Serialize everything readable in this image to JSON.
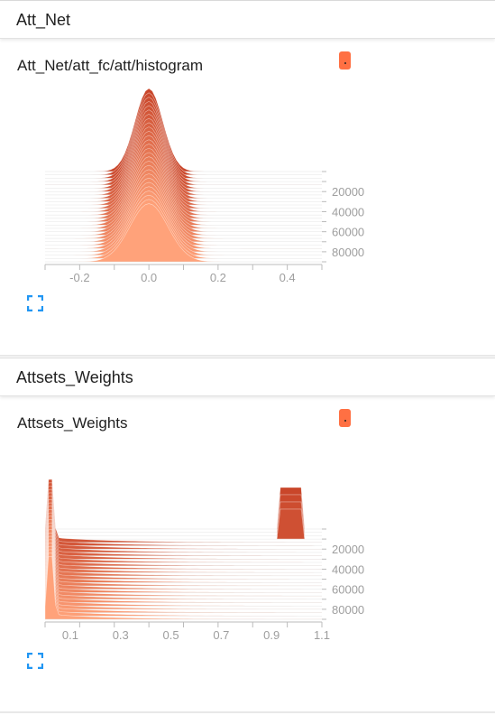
{
  "colors": {
    "accent": "#ff7043",
    "dark": "#c9462a",
    "light": "#ffa27a",
    "icon": "#2196f3"
  },
  "sections": [
    {
      "title": "Att_Net"
    },
    {
      "title": "Attsets_Weights"
    }
  ],
  "charts": [
    {
      "title": "Att_Net/att_fc/att/histogram",
      "badge_icon": "color-swatch-icon",
      "expand_icon": "fullscreen-icon"
    },
    {
      "title": "Attsets_Weights",
      "badge_icon": "color-swatch-icon",
      "expand_icon": "fullscreen-icon"
    }
  ],
  "chart_data": [
    {
      "type": "area",
      "title": "Att_Net/att_fc/att/histogram",
      "xlim": [
        -0.3,
        0.5
      ],
      "x_ticks": [
        -0.2,
        0.0,
        0.2,
        0.4
      ],
      "x_tick_labels": [
        "-0.2",
        "0.0",
        "0.2",
        "0.4"
      ],
      "step_ticks": [
        20000,
        40000,
        60000,
        80000
      ],
      "step_tick_labels": [
        "20000",
        "40000",
        "60000",
        "80000"
      ],
      "step_range": [
        0,
        90000
      ],
      "num_slices": 28,
      "distribution": {
        "center": 0.0,
        "stddev_first": 0.04,
        "stddev_last": 0.055,
        "height_first": 1.0,
        "height_last": 0.7
      }
    },
    {
      "type": "area",
      "title": "Attsets_Weights",
      "xlim": [
        0.0,
        1.1
      ],
      "x_ticks": [
        0.1,
        0.3,
        0.5,
        0.7,
        0.9,
        1.1
      ],
      "x_tick_labels": [
        "0.1",
        "0.3",
        "0.5",
        "0.7",
        "0.9",
        "1.1"
      ],
      "step_ticks": [
        20000,
        40000,
        60000,
        80000
      ],
      "step_tick_labels": [
        "20000",
        "40000",
        "60000",
        "80000"
      ],
      "step_range": [
        0,
        90000
      ],
      "num_slices": 28,
      "distribution": {
        "mode_early": 0.97,
        "mode_late": 0.02
      }
    }
  ]
}
